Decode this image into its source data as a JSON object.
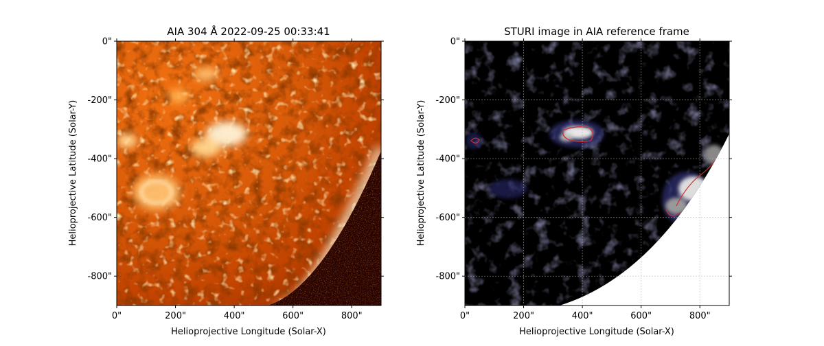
{
  "panels": [
    {
      "title": "AIA 304 Å 2022-09-25 00:33:41",
      "xlabel": "Helioprojective Longitude (Solar-X)",
      "ylabel": "Helioprojective Latitude (Solar-Y)",
      "xticks": [
        "0\"",
        "200\"",
        "400\"",
        "600\"",
        "800\""
      ],
      "yticks": [
        "0\"",
        "-200\"",
        "-400\"",
        "-600\"",
        "-800\""
      ]
    },
    {
      "title": "STURI image in AIA reference frame",
      "xlabel": "Helioprojective Longitude (Solar-X)",
      "ylabel": "Helioprojective Latitude (Solar-Y)",
      "xticks": [
        "0\"",
        "200\"",
        "400\"",
        "600\"",
        "800\""
      ],
      "yticks": [
        "0\"",
        "-200\"",
        "-400\"",
        "-600\"",
        "-800\""
      ]
    }
  ],
  "axes": {
    "xlim": [
      0,
      900
    ],
    "ylim": [
      -900,
      0
    ],
    "tick_values": [
      0,
      200,
      400,
      600,
      800
    ]
  },
  "colors": {
    "aia_dark": "#3a0600",
    "aia_mid": "#c84a00",
    "aia_bright": "#ff8c1a",
    "aia_hot": "#fff2d0",
    "contour": "#d03030"
  }
}
